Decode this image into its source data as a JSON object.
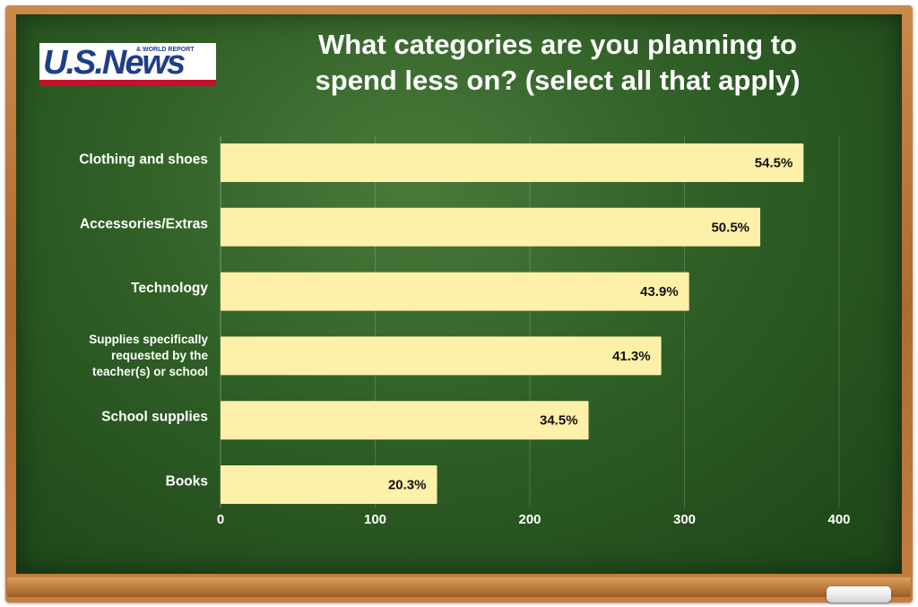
{
  "logo": {
    "main": "U.S.News",
    "sub": "& WORLD REPORT"
  },
  "title_lines": [
    "What categories are you planning to",
    "spend less on? (select all that apply)"
  ],
  "colors": {
    "bar": "#fdf0a8",
    "board": "#2f5e26",
    "frame": "#b77636",
    "logo_blue": "#1d3f88",
    "logo_red": "#c8102e"
  },
  "chart_data": {
    "type": "bar",
    "orientation": "horizontal",
    "categories": [
      [
        "Clothing and shoes"
      ],
      [
        "Accessories/Extras"
      ],
      [
        "Technology"
      ],
      [
        "Supplies specifically",
        "requested by the",
        "teacher(s) or school"
      ],
      [
        "School supplies"
      ],
      [
        "Books"
      ]
    ],
    "values": [
      377,
      349,
      303,
      285,
      238,
      140
    ],
    "value_labels": [
      "54.5%",
      "50.5%",
      "43.9%",
      "41.3%",
      "34.5%",
      "20.3%"
    ],
    "xlim": [
      0,
      400
    ],
    "x_ticks": [
      0,
      100,
      200,
      300,
      400
    ],
    "grid": "vertical gridlines at ticks",
    "title": "What categories are you planning to spend less on? (select all that apply)"
  }
}
